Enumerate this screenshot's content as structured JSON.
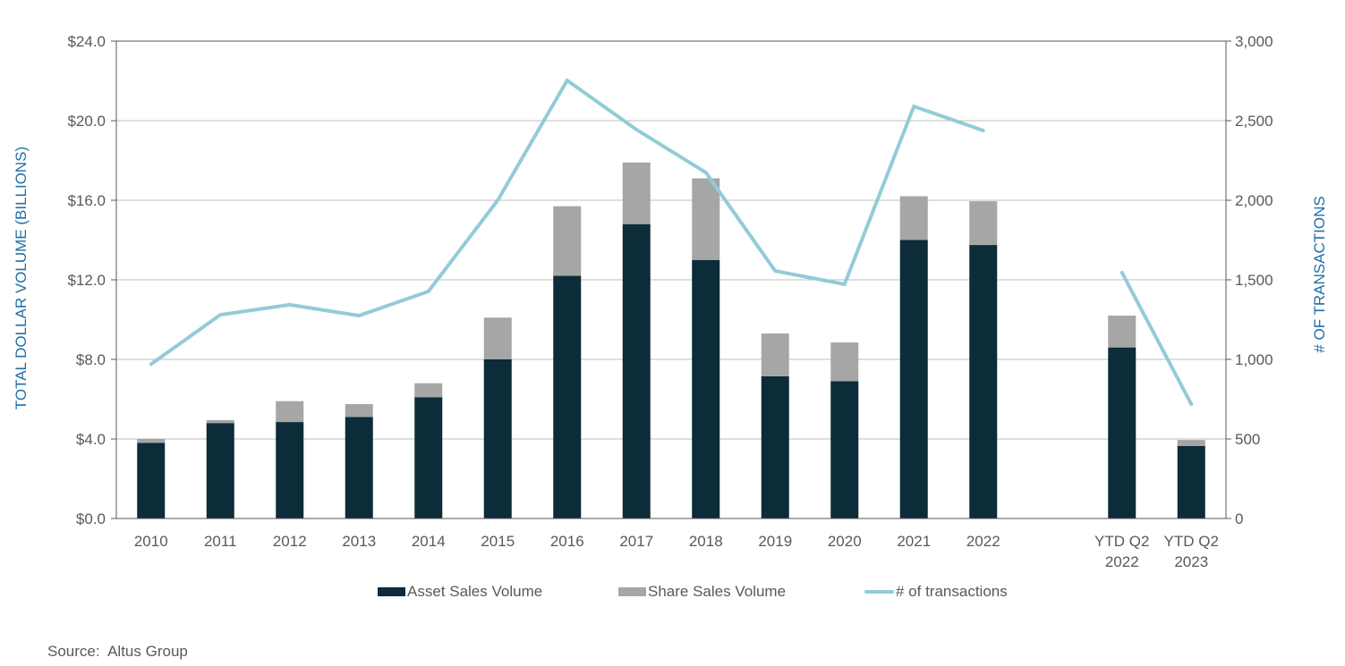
{
  "chart_data": {
    "type": "bar",
    "subtype": "stacked-bar-with-line-secondary-axis",
    "categories": [
      "2010",
      "2011",
      "2012",
      "2013",
      "2014",
      "2015",
      "2016",
      "2017",
      "2018",
      "2019",
      "2020",
      "2021",
      "2022",
      "",
      "YTD Q2 2022",
      "YTD Q2 2023"
    ],
    "category_labels": [
      [
        "2010"
      ],
      [
        "2011"
      ],
      [
        "2012"
      ],
      [
        "2013"
      ],
      [
        "2014"
      ],
      [
        "2015"
      ],
      [
        "2016"
      ],
      [
        "2017"
      ],
      [
        "2018"
      ],
      [
        "2019"
      ],
      [
        "2020"
      ],
      [
        "2021"
      ],
      [
        "2022"
      ],
      [],
      [
        "YTD Q2",
        "2022"
      ],
      [
        "YTD Q2",
        "2023"
      ]
    ],
    "series": [
      {
        "name": "Asset Sales Volume",
        "type": "bar",
        "axis": "left",
        "color": "#0b2c38",
        "values": [
          3.8,
          4.8,
          4.85,
          5.1,
          6.1,
          8.0,
          12.2,
          14.8,
          13.0,
          7.15,
          6.9,
          14.0,
          13.75,
          null,
          8.6,
          3.65
        ]
      },
      {
        "name": "Share Sales Volume",
        "type": "bar",
        "axis": "left",
        "color": "#a6a6a6",
        "values": [
          0.2,
          0.15,
          1.05,
          0.65,
          0.7,
          2.1,
          3.5,
          3.1,
          4.1,
          2.15,
          1.95,
          2.2,
          2.2,
          null,
          1.6,
          0.3
        ]
      },
      {
        "name": "# of transactions",
        "type": "line",
        "axis": "right",
        "color": "#92ccd6",
        "segments": [
          [
            0,
            12
          ],
          [
            14,
            15
          ]
        ],
        "values": [
          970,
          1280,
          1343,
          1275,
          1427,
          2000,
          2753,
          2444,
          2174,
          1556,
          1472,
          2590,
          2438,
          null,
          1545,
          719
        ]
      }
    ],
    "title": "",
    "xlabel": "",
    "ylabel": "TOTAL DOLLAR VOLUME (BILLIONS)",
    "y2label": "# OF TRANSACTIONS",
    "ylim": [
      0,
      24
    ],
    "y2lim": [
      0,
      3000
    ],
    "yticks": [
      "$0.0",
      "$4.0",
      "$8.0",
      "$12.0",
      "$16.0",
      "$20.0",
      "$24.0"
    ],
    "ytick_values": [
      0,
      4,
      8,
      12,
      16,
      20,
      24
    ],
    "y2ticks": [
      "0",
      "500",
      "1,000",
      "1,500",
      "2,000",
      "2,500",
      "3,000"
    ],
    "y2tick_values": [
      0,
      500,
      1000,
      1500,
      2000,
      2500,
      3000
    ],
    "grid": true,
    "legend_position": "bottom-center"
  },
  "legend": {
    "asset": "Asset Sales Volume",
    "share": "Share Sales Volume",
    "transactions": "# of transactions"
  },
  "source": "Source:  Altus Group",
  "colors": {
    "asset": "#0b2c38",
    "share": "#a6a6a6",
    "line": "#92ccd6",
    "axis_title": "#1f6fa5",
    "tick_text": "#595959",
    "grid": "#bfbfbf",
    "axis": "#595959"
  }
}
